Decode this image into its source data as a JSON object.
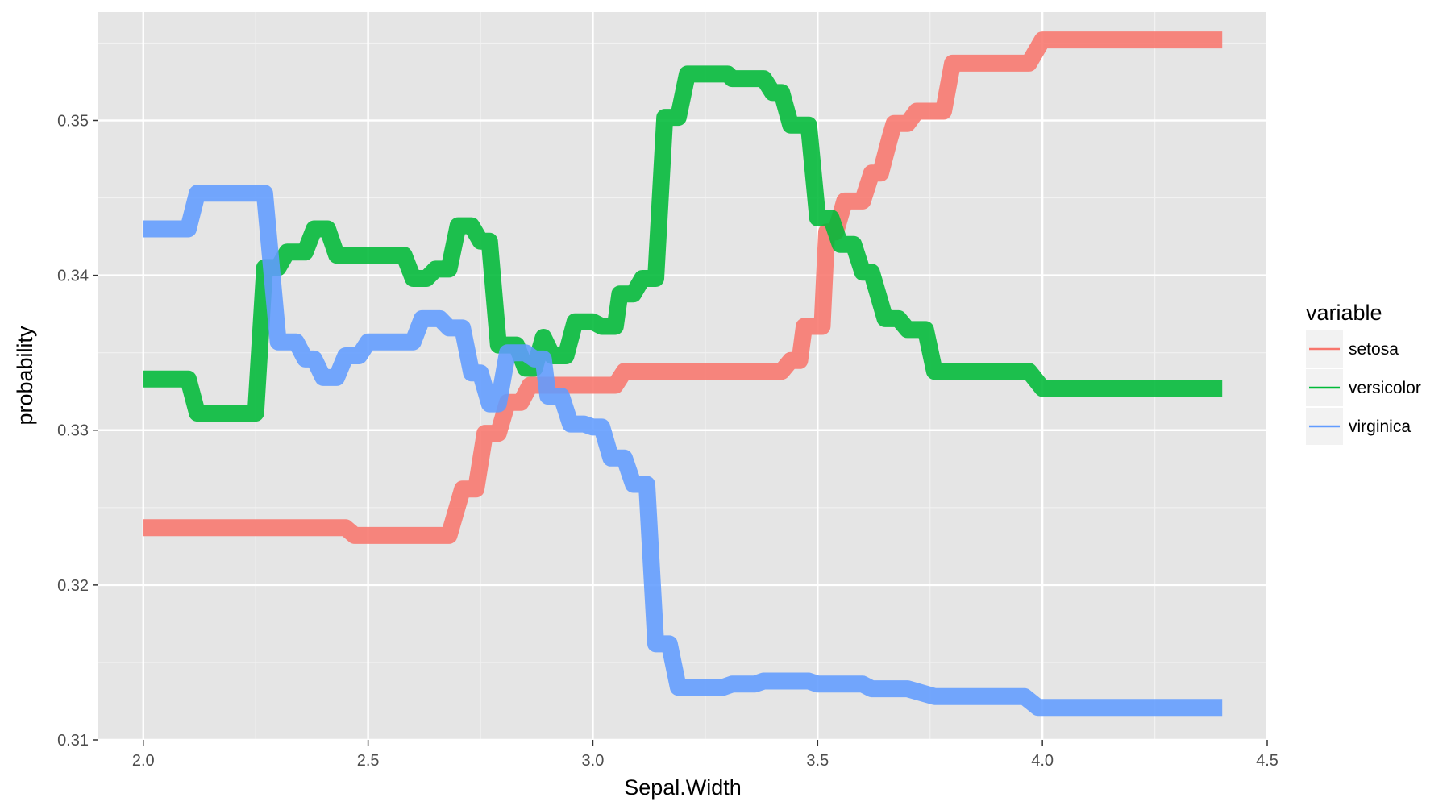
{
  "chart_data": {
    "type": "line",
    "xlabel": "Sepal.Width",
    "ylabel": "probability",
    "xlim": [
      1.9,
      4.5
    ],
    "ylim": [
      0.31,
      0.357
    ],
    "x_ticks": [
      2.0,
      2.5,
      3.0,
      3.5,
      4.0,
      4.5
    ],
    "y_ticks": [
      0.31,
      0.32,
      0.33,
      0.34,
      0.35
    ],
    "x_tick_labels": [
      "2.0",
      "2.5",
      "3.0",
      "3.5",
      "4.0",
      "4.5"
    ],
    "y_tick_labels": [
      "0.31",
      "0.32",
      "0.33",
      "0.34",
      "0.35"
    ],
    "grid": true,
    "background": "#E5E5E5",
    "legend": {
      "title": "variable",
      "placement": "right",
      "entries": [
        "setosa",
        "versicolor",
        "virginica"
      ]
    },
    "series": [
      {
        "name": "setosa",
        "color": "#F8766D",
        "points": [
          [
            2.0,
            0.3237
          ],
          [
            2.45,
            0.3237
          ],
          [
            2.47,
            0.3232
          ],
          [
            2.68,
            0.3232
          ],
          [
            2.71,
            0.3262
          ],
          [
            2.74,
            0.3262
          ],
          [
            2.76,
            0.3298
          ],
          [
            2.79,
            0.3298
          ],
          [
            2.81,
            0.3318
          ],
          [
            2.84,
            0.3318
          ],
          [
            2.86,
            0.3329
          ],
          [
            3.05,
            0.3329
          ],
          [
            3.07,
            0.3338
          ],
          [
            3.42,
            0.3338
          ],
          [
            3.44,
            0.3345
          ],
          [
            3.46,
            0.3345
          ],
          [
            3.47,
            0.3367
          ],
          [
            3.51,
            0.3367
          ],
          [
            3.52,
            0.3428
          ],
          [
            3.54,
            0.3428
          ],
          [
            3.56,
            0.3448
          ],
          [
            3.6,
            0.3448
          ],
          [
            3.62,
            0.3466
          ],
          [
            3.64,
            0.3466
          ],
          [
            3.66,
            0.3488
          ],
          [
            3.67,
            0.3498
          ],
          [
            3.7,
            0.3498
          ],
          [
            3.72,
            0.3506
          ],
          [
            3.78,
            0.3506
          ],
          [
            3.8,
            0.3537
          ],
          [
            3.97,
            0.3537
          ],
          [
            4.0,
            0.3552
          ],
          [
            4.4,
            0.3552
          ]
        ]
      },
      {
        "name": "versicolor",
        "color": "#00BA38",
        "points": [
          [
            2.0,
            0.3333
          ],
          [
            2.1,
            0.3333
          ],
          [
            2.12,
            0.3311
          ],
          [
            2.25,
            0.3311
          ],
          [
            2.27,
            0.3405
          ],
          [
            2.3,
            0.3405
          ],
          [
            2.32,
            0.3415
          ],
          [
            2.36,
            0.3415
          ],
          [
            2.38,
            0.343
          ],
          [
            2.41,
            0.343
          ],
          [
            2.43,
            0.3413
          ],
          [
            2.58,
            0.3413
          ],
          [
            2.6,
            0.3398
          ],
          [
            2.63,
            0.3398
          ],
          [
            2.65,
            0.3404
          ],
          [
            2.68,
            0.3404
          ],
          [
            2.7,
            0.3432
          ],
          [
            2.73,
            0.3432
          ],
          [
            2.75,
            0.3422
          ],
          [
            2.77,
            0.3422
          ],
          [
            2.79,
            0.3355
          ],
          [
            2.83,
            0.3355
          ],
          [
            2.85,
            0.334
          ],
          [
            2.87,
            0.334
          ],
          [
            2.89,
            0.336
          ],
          [
            2.91,
            0.3348
          ],
          [
            2.94,
            0.3348
          ],
          [
            2.96,
            0.337
          ],
          [
            3.0,
            0.337
          ],
          [
            3.02,
            0.3367
          ],
          [
            3.05,
            0.3367
          ],
          [
            3.06,
            0.3388
          ],
          [
            3.09,
            0.3388
          ],
          [
            3.11,
            0.3398
          ],
          [
            3.14,
            0.3398
          ],
          [
            3.16,
            0.3502
          ],
          [
            3.19,
            0.3502
          ],
          [
            3.21,
            0.353
          ],
          [
            3.3,
            0.353
          ],
          [
            3.31,
            0.3527
          ],
          [
            3.38,
            0.3527
          ],
          [
            3.4,
            0.3518
          ],
          [
            3.42,
            0.3518
          ],
          [
            3.44,
            0.3497
          ],
          [
            3.48,
            0.3497
          ],
          [
            3.5,
            0.3437
          ],
          [
            3.53,
            0.3437
          ],
          [
            3.55,
            0.342
          ],
          [
            3.58,
            0.342
          ],
          [
            3.6,
            0.3402
          ],
          [
            3.62,
            0.3402
          ],
          [
            3.64,
            0.3382
          ],
          [
            3.65,
            0.3372
          ],
          [
            3.68,
            0.3372
          ],
          [
            3.7,
            0.3365
          ],
          [
            3.74,
            0.3365
          ],
          [
            3.76,
            0.3338
          ],
          [
            3.97,
            0.3338
          ],
          [
            4.0,
            0.3327
          ],
          [
            4.4,
            0.3327
          ]
        ]
      },
      {
        "name": "virginica",
        "color": "#619CFF",
        "points": [
          [
            2.0,
            0.343
          ],
          [
            2.1,
            0.343
          ],
          [
            2.12,
            0.3453
          ],
          [
            2.27,
            0.3453
          ],
          [
            2.3,
            0.3357
          ],
          [
            2.34,
            0.3357
          ],
          [
            2.36,
            0.3346
          ],
          [
            2.38,
            0.3346
          ],
          [
            2.4,
            0.3334
          ],
          [
            2.43,
            0.3334
          ],
          [
            2.45,
            0.3348
          ],
          [
            2.48,
            0.3348
          ],
          [
            2.5,
            0.3357
          ],
          [
            2.6,
            0.3357
          ],
          [
            2.62,
            0.3372
          ],
          [
            2.66,
            0.3372
          ],
          [
            2.68,
            0.3366
          ],
          [
            2.71,
            0.3366
          ],
          [
            2.73,
            0.3337
          ],
          [
            2.75,
            0.3337
          ],
          [
            2.77,
            0.3317
          ],
          [
            2.79,
            0.3317
          ],
          [
            2.81,
            0.335
          ],
          [
            2.85,
            0.335
          ],
          [
            2.87,
            0.3346
          ],
          [
            2.89,
            0.3346
          ],
          [
            2.9,
            0.3322
          ],
          [
            2.93,
            0.3322
          ],
          [
            2.95,
            0.3304
          ],
          [
            2.98,
            0.3304
          ],
          [
            3.0,
            0.3302
          ],
          [
            3.02,
            0.3302
          ],
          [
            3.04,
            0.3282
          ],
          [
            3.07,
            0.3282
          ],
          [
            3.09,
            0.3265
          ],
          [
            3.12,
            0.3265
          ],
          [
            3.14,
            0.3162
          ],
          [
            3.17,
            0.3162
          ],
          [
            3.19,
            0.3134
          ],
          [
            3.29,
            0.3134
          ],
          [
            3.31,
            0.3136
          ],
          [
            3.36,
            0.3136
          ],
          [
            3.38,
            0.3138
          ],
          [
            3.48,
            0.3138
          ],
          [
            3.5,
            0.3136
          ],
          [
            3.6,
            0.3136
          ],
          [
            3.62,
            0.3133
          ],
          [
            3.7,
            0.3133
          ],
          [
            3.76,
            0.3128
          ],
          [
            3.96,
            0.3128
          ],
          [
            3.99,
            0.3121
          ],
          [
            4.4,
            0.3121
          ]
        ]
      }
    ]
  }
}
